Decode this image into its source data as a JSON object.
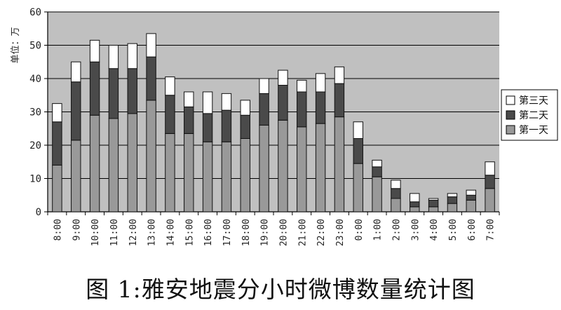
{
  "caption": "图 1:雅安地震分小时微博数量统计图",
  "chart_data": {
    "type": "bar",
    "stacked": true,
    "ylabel": "单位：万",
    "ylim": [
      0,
      60
    ],
    "yticks": [
      0,
      10,
      20,
      30,
      40,
      50,
      60
    ],
    "grid": true,
    "legend_position": "right",
    "categories": [
      "8:00",
      "9:00",
      "10:00",
      "11:00",
      "12:00",
      "13:00",
      "14:00",
      "15:00",
      "16:00",
      "17:00",
      "18:00",
      "19:00",
      "20:00",
      "21:00",
      "22:00",
      "23:00",
      "0:00",
      "1:00",
      "2:00",
      "3:00",
      "4:00",
      "5:00",
      "6:00",
      "7:00"
    ],
    "series": [
      {
        "name": "第一天",
        "color": "#999999",
        "values": [
          14,
          21.5,
          29,
          28,
          29.5,
          33.5,
          23.5,
          23.5,
          21,
          21,
          22,
          26,
          27.5,
          25.5,
          26.5,
          28.5,
          14.5,
          10.5,
          4,
          1.5,
          1.5,
          2.5,
          3.5,
          7
        ]
      },
      {
        "name": "第二天",
        "color": "#4a4a4a",
        "values": [
          13,
          17.5,
          16,
          15,
          13.5,
          13,
          11.5,
          8,
          8.5,
          9.5,
          7,
          9.5,
          10.5,
          10.5,
          9.5,
          10,
          7.5,
          3,
          3,
          1.5,
          2,
          2,
          1.5,
          4
        ]
      },
      {
        "name": "第三天",
        "color": "#ffffff",
        "values": [
          5.5,
          6,
          6.5,
          7,
          7.5,
          7,
          5.5,
          4.5,
          6.5,
          5,
          4.5,
          4.5,
          4.5,
          3.5,
          5.5,
          5,
          5,
          2,
          2.5,
          2.5,
          0.5,
          1,
          1.5,
          4
        ]
      }
    ]
  },
  "colors": {
    "plot_bg": "#c0c0c0",
    "bar_stroke": "#111111",
    "grid": "#000000"
  }
}
